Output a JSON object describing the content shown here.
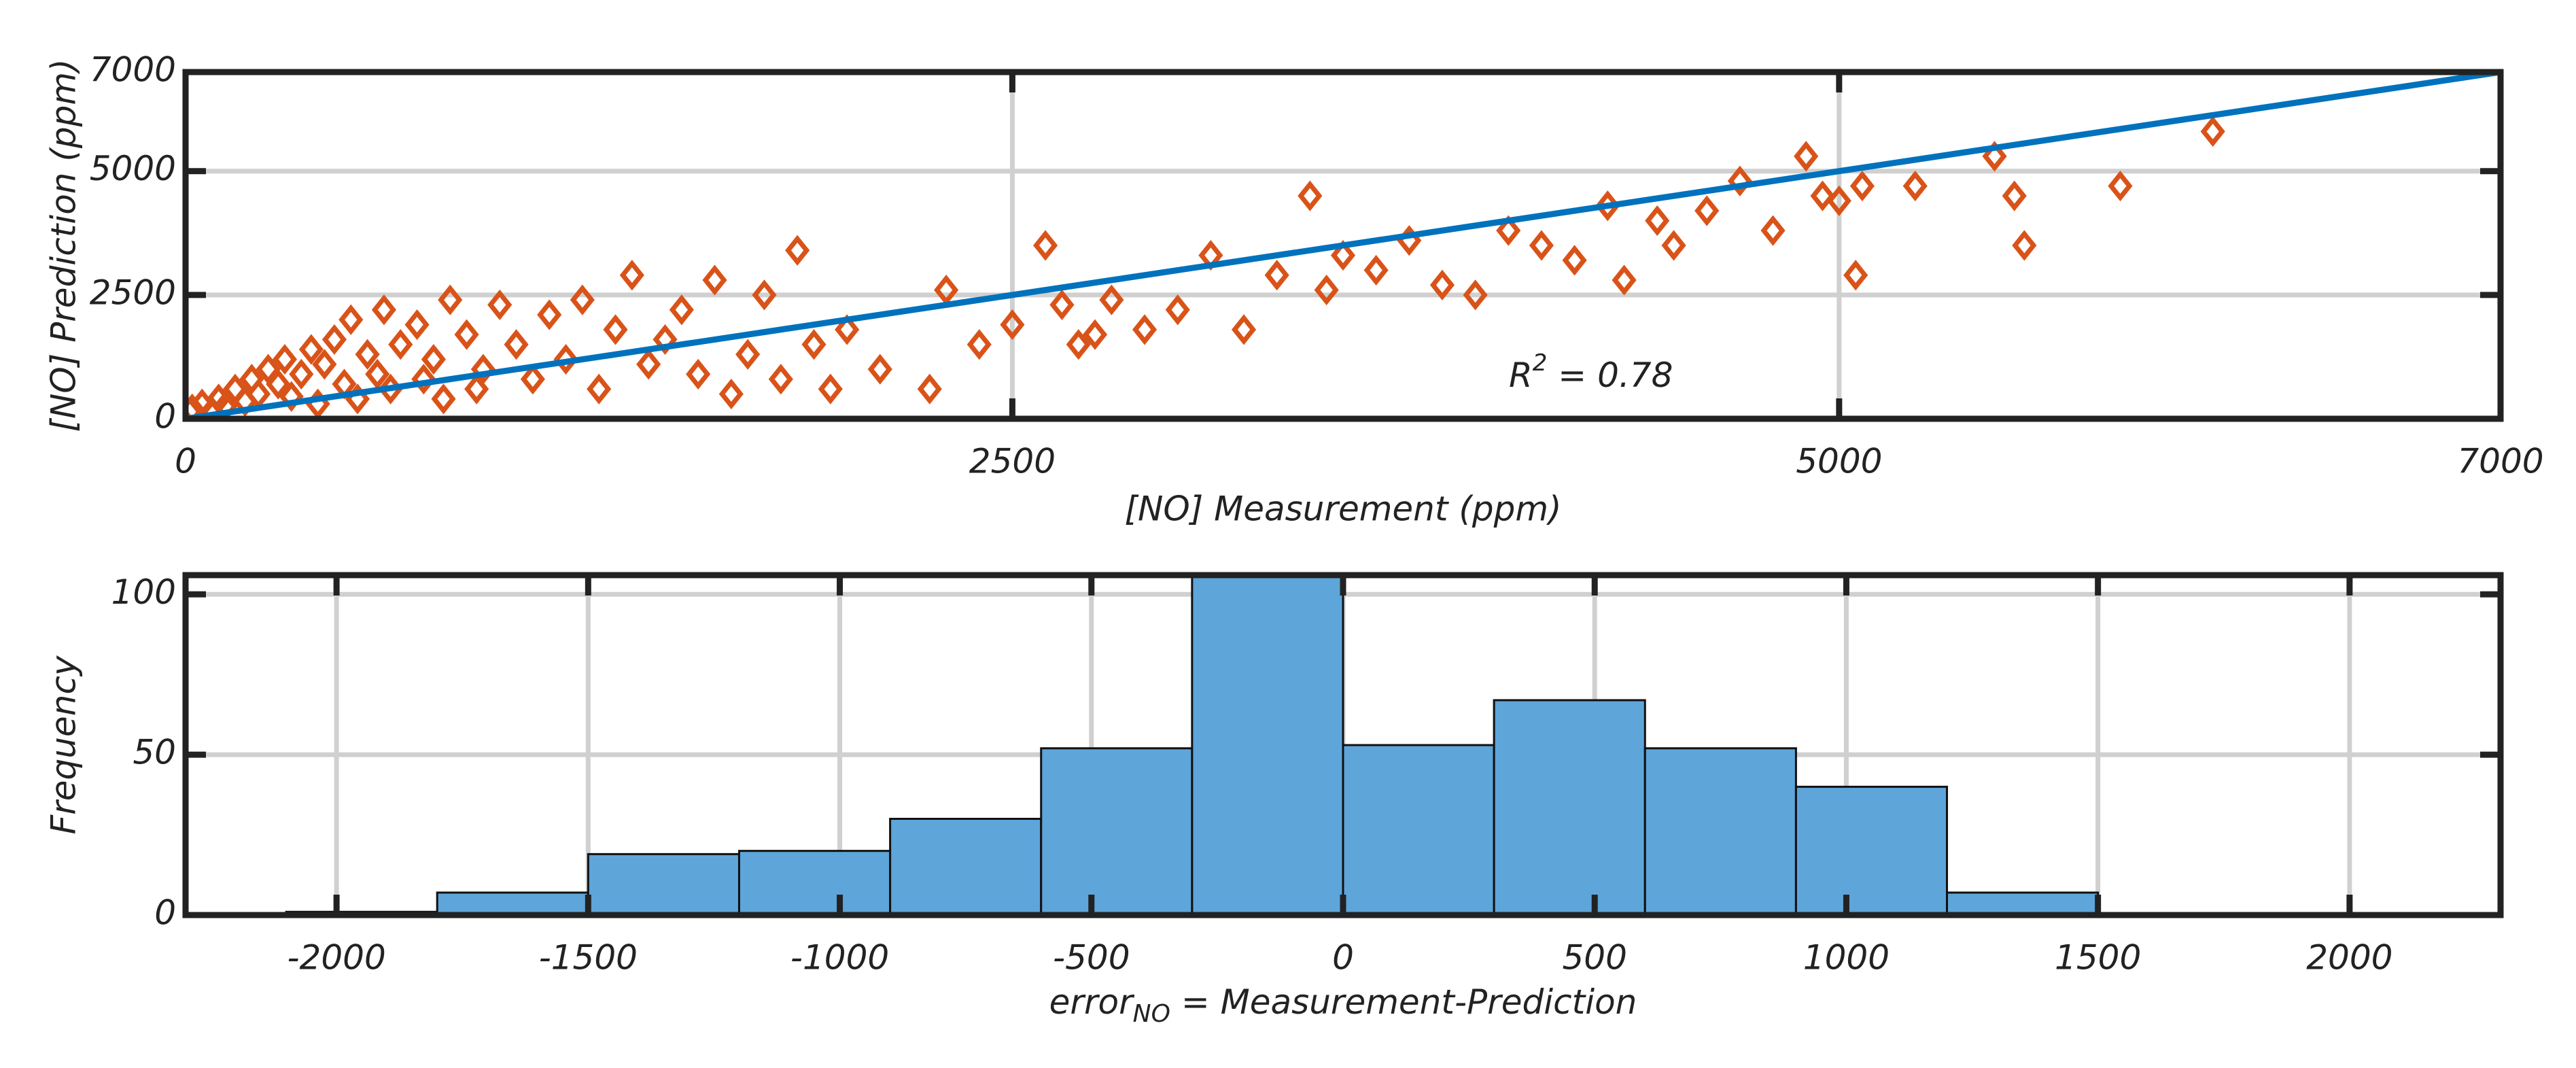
{
  "chart_data": [
    {
      "type": "scatter",
      "xlabel": "[NO] Measurement (ppm)",
      "ylabel": "[NO] Prediction (ppm)",
      "annotation": {
        "text": "R",
        "sup": "2",
        "rest": " = 0.78"
      },
      "x": [
        20,
        50,
        80,
        100,
        120,
        150,
        180,
        200,
        220,
        250,
        280,
        300,
        320,
        350,
        380,
        400,
        420,
        450,
        480,
        500,
        520,
        550,
        580,
        600,
        620,
        650,
        700,
        720,
        750,
        780,
        800,
        850,
        880,
        900,
        950,
        1000,
        1050,
        1100,
        1150,
        1200,
        1250,
        1300,
        1350,
        1400,
        1450,
        1500,
        1550,
        1600,
        1650,
        1700,
        1750,
        1800,
        1850,
        1900,
        1950,
        2000,
        2100,
        2250,
        2300,
        2400,
        2500,
        2600,
        2650,
        2700,
        2750,
        2800,
        2900,
        3000,
        3100,
        3200,
        3300,
        3400,
        3450,
        3500,
        3600,
        3700,
        3800,
        3900,
        4000,
        4100,
        4200,
        4300,
        4350,
        4450,
        4500,
        4600,
        4700,
        4800,
        4900,
        4950,
        5000,
        5050,
        5070,
        5230,
        5470,
        5530,
        5560,
        5850,
        6130
      ],
      "values": [
        200,
        300,
        150,
        400,
        250,
        600,
        350,
        800,
        500,
        1000,
        700,
        1200,
        450,
        900,
        1400,
        300,
        1100,
        1600,
        700,
        2000,
        400,
        1300,
        900,
        2200,
        600,
        1500,
        1900,
        800,
        1200,
        400,
        2400,
        1700,
        600,
        1000,
        2300,
        1500,
        800,
        2100,
        1200,
        2400,
        600,
        1800,
        2900,
        1100,
        1600,
        2200,
        900,
        2800,
        500,
        1300,
        2500,
        800,
        3400,
        1500,
        600,
        1800,
        1000,
        600,
        2600,
        1500,
        1900,
        3500,
        2300,
        1500,
        1700,
        2400,
        1800,
        2200,
        3300,
        1800,
        2900,
        4500,
        2600,
        3300,
        3000,
        3600,
        2700,
        2500,
        3800,
        3500,
        3200,
        4300,
        2800,
        4000,
        3500,
        4200,
        4800,
        3800,
        5300,
        4500,
        4400,
        2900,
        4700,
        4700,
        5300,
        4500,
        3500,
        4700,
        5800
      ],
      "color": "#d95319",
      "fit": {
        "x": [
          0,
          7000
        ],
        "values": [
          0,
          7000
        ],
        "color": "#0072bd"
      },
      "xlim": [
        0,
        7000
      ],
      "ylim": [
        0,
        7000
      ],
      "xticks": [
        0,
        2500,
        5000,
        7000
      ],
      "yticks": [
        0,
        2500,
        5000,
        7000
      ],
      "grid": true
    },
    {
      "type": "histogram",
      "xlabel": "error",
      "xlabel_sub": "NO",
      "xlabel_rest": " = Measurement-Prediction",
      "ylabel": "Frequency",
      "bins": [
        -2100,
        -1800,
        -1500,
        -1200,
        -900,
        -600,
        -300,
        0,
        300,
        600,
        900,
        1200,
        1500
      ],
      "values": [
        1,
        7,
        19,
        20,
        30,
        52,
        110,
        53,
        67,
        52,
        40,
        7
      ],
      "color": "#5ea5da",
      "xlim": [
        -2300,
        2300
      ],
      "ylim": [
        0,
        106
      ],
      "xticks": [
        -2000,
        -1500,
        -1000,
        -500,
        0,
        500,
        1000,
        1500,
        2000
      ],
      "yticks": [
        0,
        50,
        100
      ],
      "grid": true
    }
  ]
}
